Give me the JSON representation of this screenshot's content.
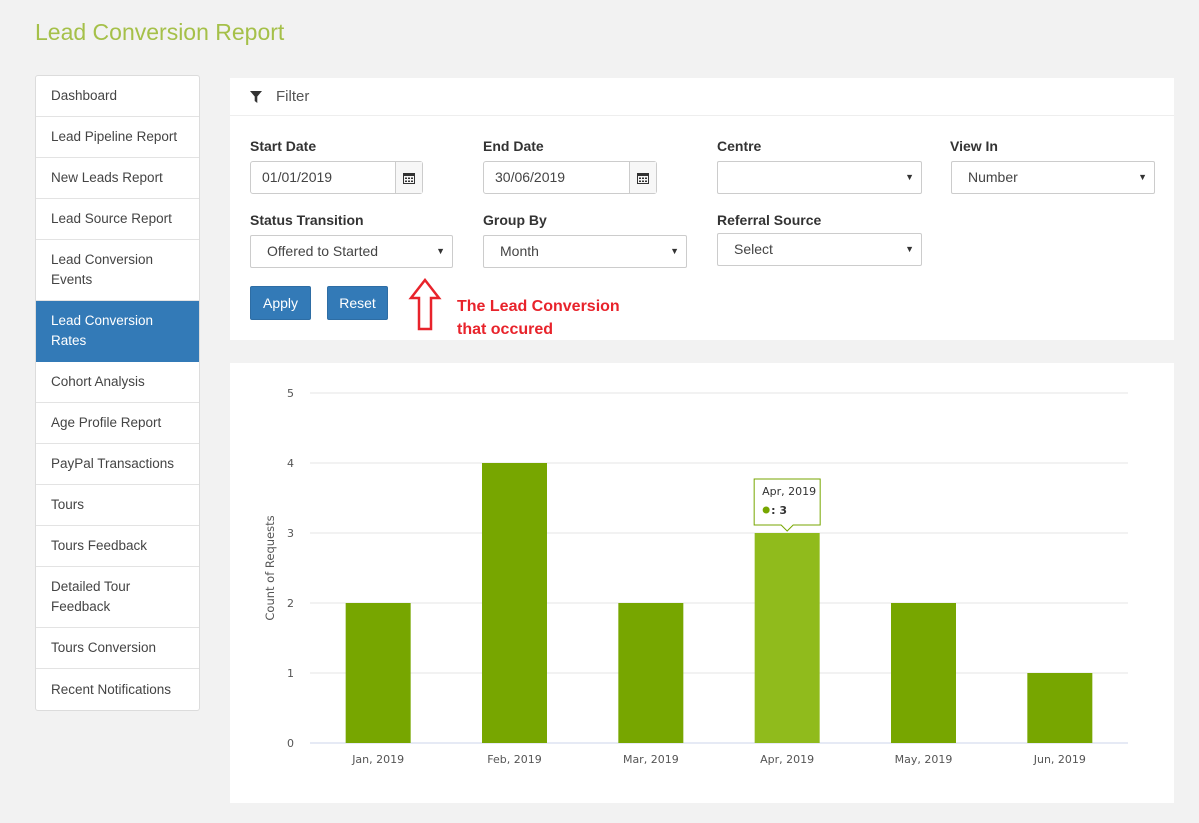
{
  "page": {
    "title": "Lead Conversion Report"
  },
  "sidebar": {
    "items": [
      {
        "label": "Dashboard",
        "active": false
      },
      {
        "label": "Lead Pipeline Report",
        "active": false
      },
      {
        "label": "New Leads Report",
        "active": false
      },
      {
        "label": "Lead Source Report",
        "active": false
      },
      {
        "label": "Lead Conversion Events",
        "active": false
      },
      {
        "label": "Lead Conversion Rates",
        "active": true
      },
      {
        "label": "Cohort Analysis",
        "active": false
      },
      {
        "label": "Age Profile Report",
        "active": false
      },
      {
        "label": "PayPal Transactions",
        "active": false
      },
      {
        "label": "Tours",
        "active": false
      },
      {
        "label": "Tours Feedback",
        "active": false
      },
      {
        "label": "Detailed Tour Feedback",
        "active": false
      },
      {
        "label": "Tours Conversion",
        "active": false
      },
      {
        "label": "Recent Notifications",
        "active": false
      }
    ]
  },
  "filter": {
    "title": "Filter",
    "start_date": {
      "label": "Start Date",
      "value": "01/01/2019"
    },
    "end_date": {
      "label": "End Date",
      "value": "30/06/2019"
    },
    "centre": {
      "label": "Centre",
      "value": ""
    },
    "view_in": {
      "label": "View In",
      "value": "Number"
    },
    "status_transition": {
      "label": "Status Transition",
      "value": "Offered to Started"
    },
    "group_by": {
      "label": "Group By",
      "value": "Month"
    },
    "referral_source": {
      "label": "Referral Source",
      "value": "Select"
    },
    "apply_label": "Apply",
    "reset_label": "Reset"
  },
  "annotation": {
    "line1": "The Lead Conversion",
    "line2": "that occured",
    "color": "#e8232b"
  },
  "colors": {
    "accent": "#a5c049",
    "primary": "#337ab7",
    "bar": "#77a600",
    "bar_highlight": "#90bb1c"
  },
  "chart_data": {
    "type": "bar",
    "categories": [
      "Jan, 2019",
      "Feb, 2019",
      "Mar, 2019",
      "Apr, 2019",
      "May, 2019",
      "Jun, 2019"
    ],
    "values": [
      2,
      4,
      2,
      3,
      2,
      1
    ],
    "ylabel": "Count of Requests",
    "ylim": [
      0,
      5
    ],
    "yticks": [
      0,
      1,
      2,
      3,
      4,
      5
    ],
    "grid": true,
    "highlight_index": 3,
    "tooltip": {
      "title": "Apr, 2019",
      "value_text": ": 3"
    }
  }
}
